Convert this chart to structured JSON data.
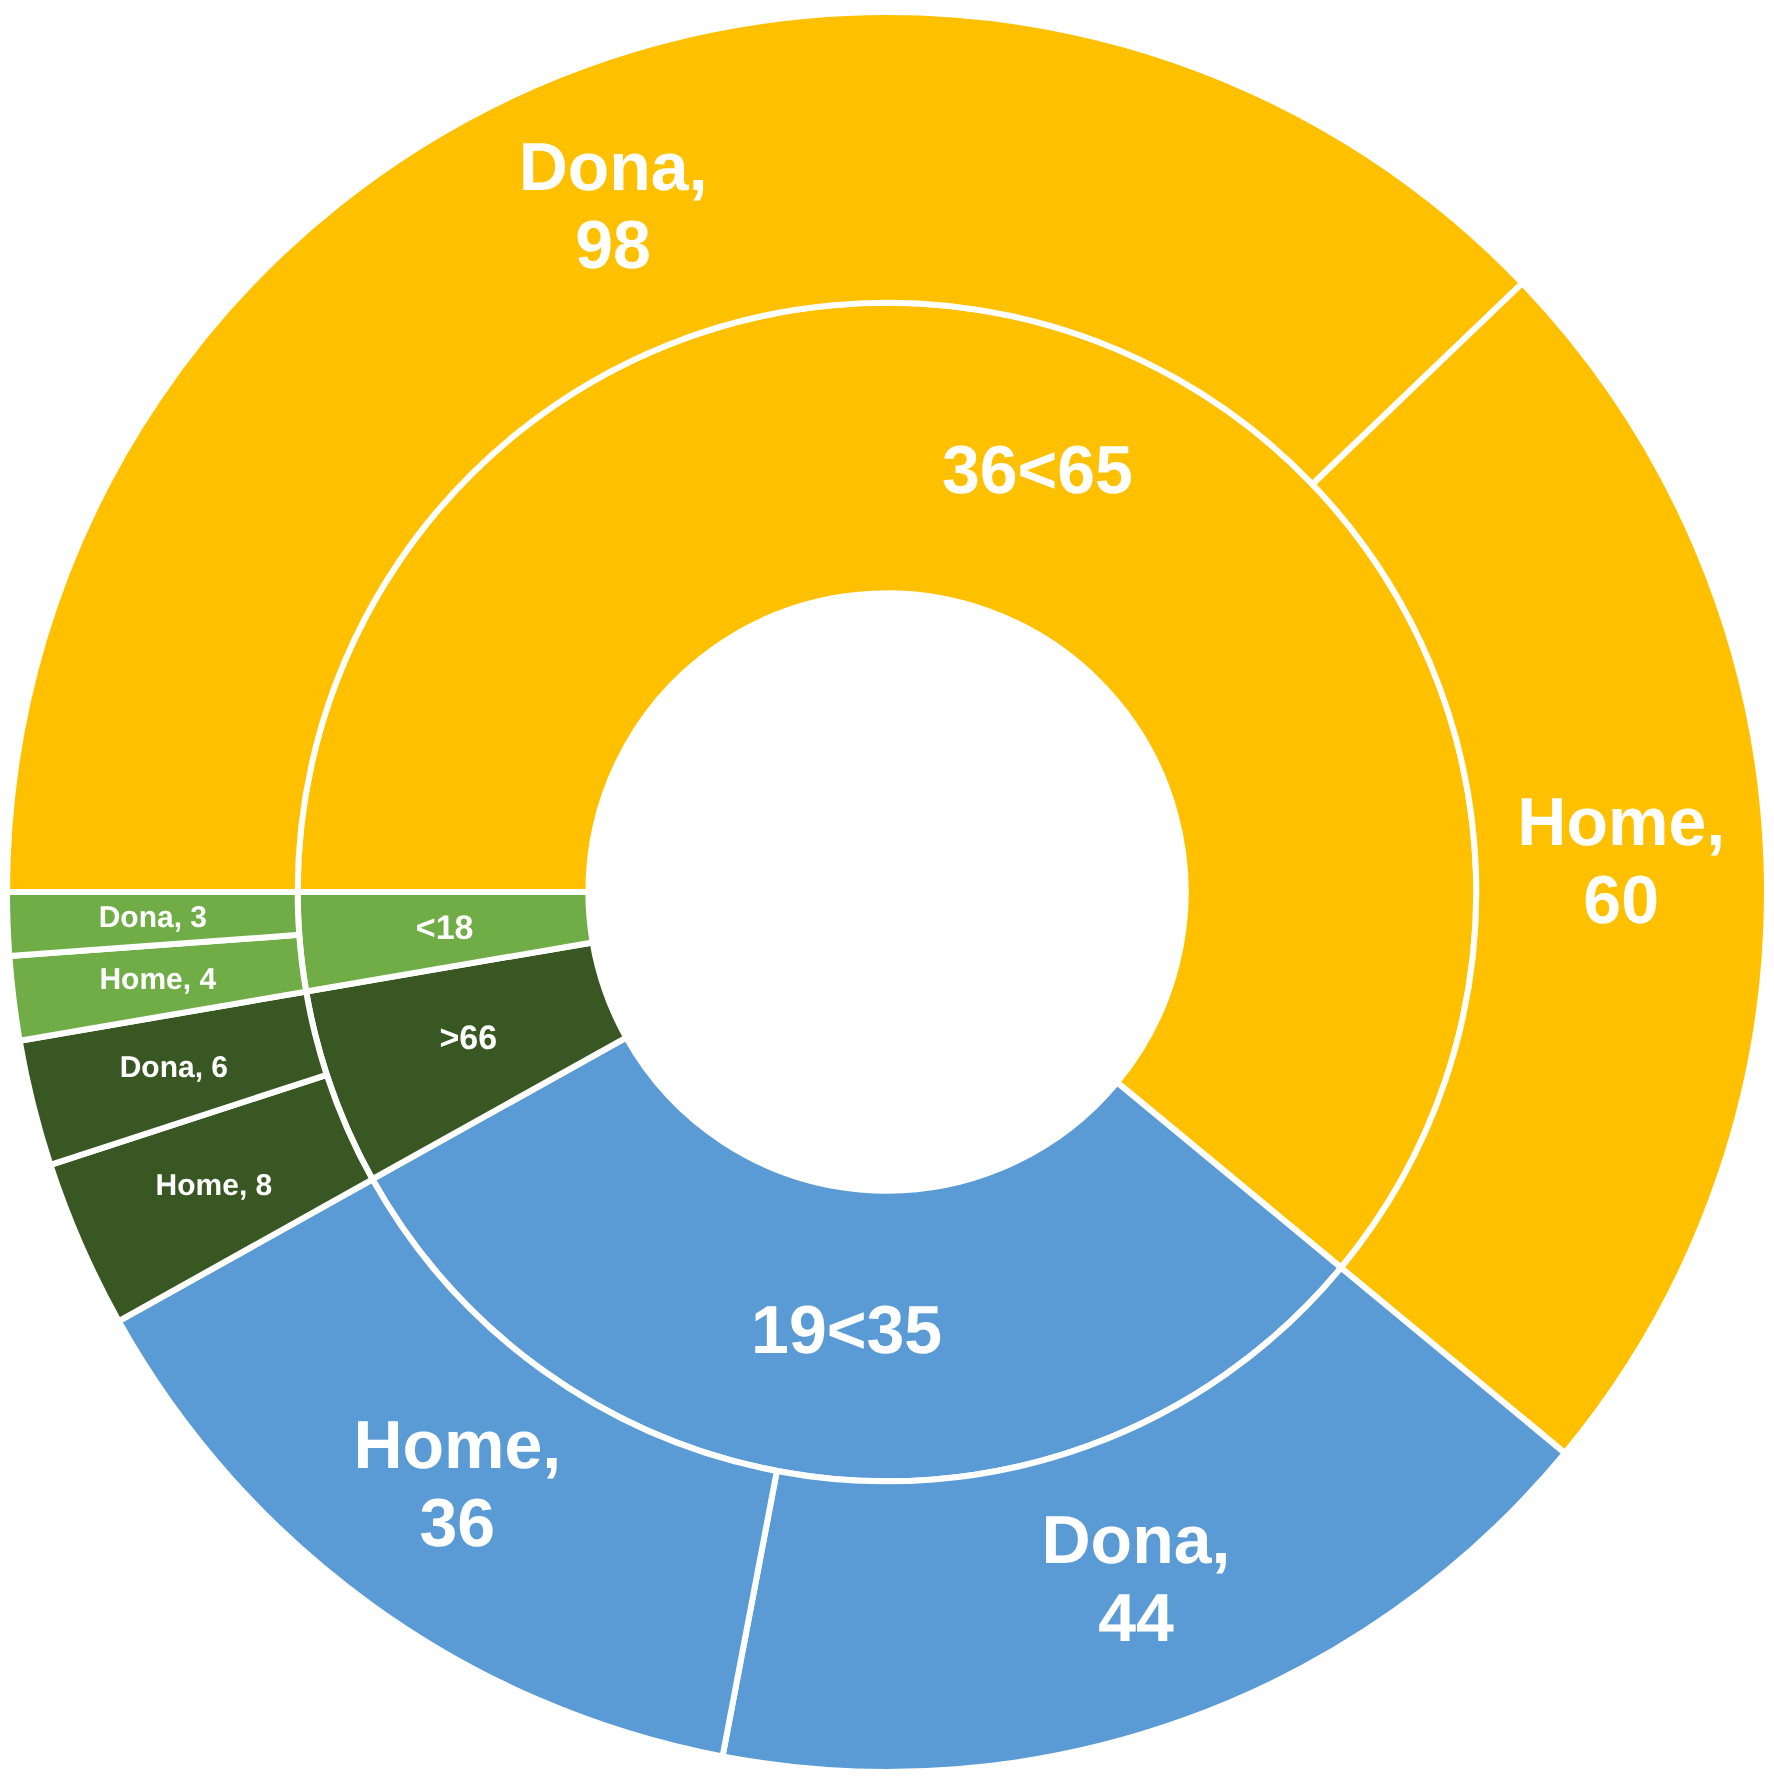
{
  "chart_data": {
    "type": "donut",
    "series": [
      {
        "values": [
          98,
          60,
          44,
          36,
          8,
          6,
          4,
          3
        ],
        "colors": [
          "#ffc000",
          "#ffc000",
          "#5b9bd5",
          "#5b9bd5",
          "#385723",
          "#385723",
          "#70ad47",
          "#70ad47"
        ],
        "value_labels": [
          "Dona, 98",
          "Home, 60",
          "Dona, 44",
          "Home, 36",
          "Home, 8",
          "Dona, 6",
          "Home, 4",
          "Dona, 3"
        ]
      },
      {
        "values": [
          61.0,
          30.9,
          5.4,
          2.7
        ],
        "colors": [
          "#ffc000",
          "#5b9bd5",
          "#385723",
          "#70ad47"
        ]
      }
    ],
    "annotations": [
      "36<65",
      "19<35",
      ">66",
      "<18"
    ]
  }
}
